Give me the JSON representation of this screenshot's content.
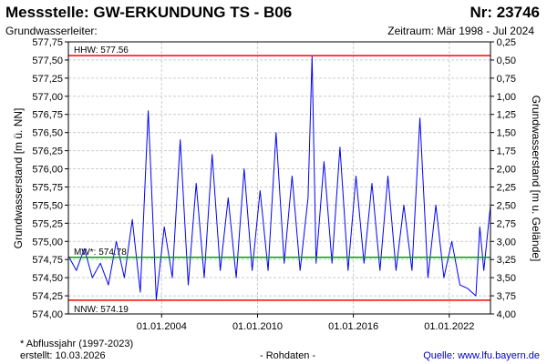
{
  "header": {
    "title": "Messstelle: GW-ERKUNDUNG TS - B06",
    "number": "Nr: 23746",
    "aquifer_label": "Grundwasserleiter:",
    "period": "Zeitraum: Mär 1998 - Jul 2024"
  },
  "footer": {
    "note": "* Abflussjahr (1997-2023)",
    "created": "erstellt:  10.03.2026",
    "raw": "- Rohdaten -",
    "source_label": "Quelle:",
    "source_url": "www.lfu.bayern.de"
  },
  "colors": {
    "series": "#0000ff",
    "hhw": "#ff0000",
    "nnw": "#ff0000",
    "mw": "#00a000",
    "grid": "#cccccc"
  },
  "chart_data": {
    "type": "line",
    "ylabel_left": "Grundwasserstand [m ü. NN]",
    "ylabel_right": "Grundwasserstand [m u. Gelände]",
    "ylim": [
      574.0,
      577.75
    ],
    "yticks_left": [
      "577,75",
      "577,50",
      "577,25",
      "577,00",
      "576,75",
      "576,50",
      "576,25",
      "576,00",
      "575,75",
      "575,50",
      "575,25",
      "575,00",
      "574,75",
      "574,50",
      "574,25",
      "574,00"
    ],
    "yticks_right": [
      "0,25",
      "0,50",
      "0,75",
      "1,00",
      "1,25",
      "1,50",
      "1,75",
      "2,00",
      "2,25",
      "2,50",
      "2,75",
      "3,00",
      "3,25",
      "3,50",
      "3,75",
      "4,00"
    ],
    "xlim": [
      "1998-03-01",
      "2024-07-31"
    ],
    "xticks": [
      {
        "date": "2004-01-01",
        "label": "01.01.2004"
      },
      {
        "date": "2010-01-01",
        "label": "01.01.2010"
      },
      {
        "date": "2016-01-01",
        "label": "01.01.2016"
      },
      {
        "date": "2022-01-01",
        "label": "01.01.2022"
      }
    ],
    "grid": true,
    "reference_lines": [
      {
        "key": "hhw",
        "label": "HHW: 577.56",
        "value": 577.56
      },
      {
        "key": "mw",
        "label": "MW*: 574.78",
        "value": 574.78
      },
      {
        "key": "nnw",
        "label": "NNW: 574.19",
        "value": 574.19
      }
    ],
    "series": [
      {
        "values": [
          {
            "x": "1998-03-01",
            "y": 574.8
          },
          {
            "x": "1998-09-01",
            "y": 574.6
          },
          {
            "x": "1999-03-01",
            "y": 574.9
          },
          {
            "x": "1999-09-01",
            "y": 574.5
          },
          {
            "x": "2000-03-01",
            "y": 574.7
          },
          {
            "x": "2000-09-01",
            "y": 574.4
          },
          {
            "x": "2001-03-01",
            "y": 575.0
          },
          {
            "x": "2001-09-01",
            "y": 574.5
          },
          {
            "x": "2002-03-01",
            "y": 575.3
          },
          {
            "x": "2002-09-01",
            "y": 574.3
          },
          {
            "x": "2003-03-01",
            "y": 576.8
          },
          {
            "x": "2003-09-01",
            "y": 574.2
          },
          {
            "x": "2004-03-01",
            "y": 575.2
          },
          {
            "x": "2004-09-01",
            "y": 574.5
          },
          {
            "x": "2005-03-01",
            "y": 576.4
          },
          {
            "x": "2005-09-01",
            "y": 574.4
          },
          {
            "x": "2006-03-01",
            "y": 575.8
          },
          {
            "x": "2006-09-01",
            "y": 574.5
          },
          {
            "x": "2007-03-01",
            "y": 576.2
          },
          {
            "x": "2007-09-01",
            "y": 574.6
          },
          {
            "x": "2008-03-01",
            "y": 575.6
          },
          {
            "x": "2008-09-01",
            "y": 574.5
          },
          {
            "x": "2009-03-01",
            "y": 576.0
          },
          {
            "x": "2009-09-01",
            "y": 574.6
          },
          {
            "x": "2010-03-01",
            "y": 575.7
          },
          {
            "x": "2010-09-01",
            "y": 574.6
          },
          {
            "x": "2011-03-01",
            "y": 576.5
          },
          {
            "x": "2011-09-01",
            "y": 574.7
          },
          {
            "x": "2012-03-01",
            "y": 575.9
          },
          {
            "x": "2012-09-01",
            "y": 574.6
          },
          {
            "x": "2013-03-01",
            "y": 575.6
          },
          {
            "x": "2013-06-01",
            "y": 577.55
          },
          {
            "x": "2013-09-01",
            "y": 574.7
          },
          {
            "x": "2014-03-01",
            "y": 576.1
          },
          {
            "x": "2014-09-01",
            "y": 574.7
          },
          {
            "x": "2015-03-01",
            "y": 576.3
          },
          {
            "x": "2015-09-01",
            "y": 574.6
          },
          {
            "x": "2016-03-01",
            "y": 575.9
          },
          {
            "x": "2016-09-01",
            "y": 574.7
          },
          {
            "x": "2017-03-01",
            "y": 575.8
          },
          {
            "x": "2017-09-01",
            "y": 574.6
          },
          {
            "x": "2018-03-01",
            "y": 575.9
          },
          {
            "x": "2018-09-01",
            "y": 574.6
          },
          {
            "x": "2019-03-01",
            "y": 575.5
          },
          {
            "x": "2019-09-01",
            "y": 574.6
          },
          {
            "x": "2020-03-01",
            "y": 576.7
          },
          {
            "x": "2020-09-01",
            "y": 574.5
          },
          {
            "x": "2021-03-01",
            "y": 575.5
          },
          {
            "x": "2021-09-01",
            "y": 574.5
          },
          {
            "x": "2022-03-01",
            "y": 575.0
          },
          {
            "x": "2022-09-01",
            "y": 574.4
          },
          {
            "x": "2023-03-01",
            "y": 574.35
          },
          {
            "x": "2023-09-01",
            "y": 574.25
          },
          {
            "x": "2023-12-01",
            "y": 575.2
          },
          {
            "x": "2024-03-01",
            "y": 574.6
          },
          {
            "x": "2024-07-31",
            "y": 575.5
          }
        ]
      }
    ]
  }
}
